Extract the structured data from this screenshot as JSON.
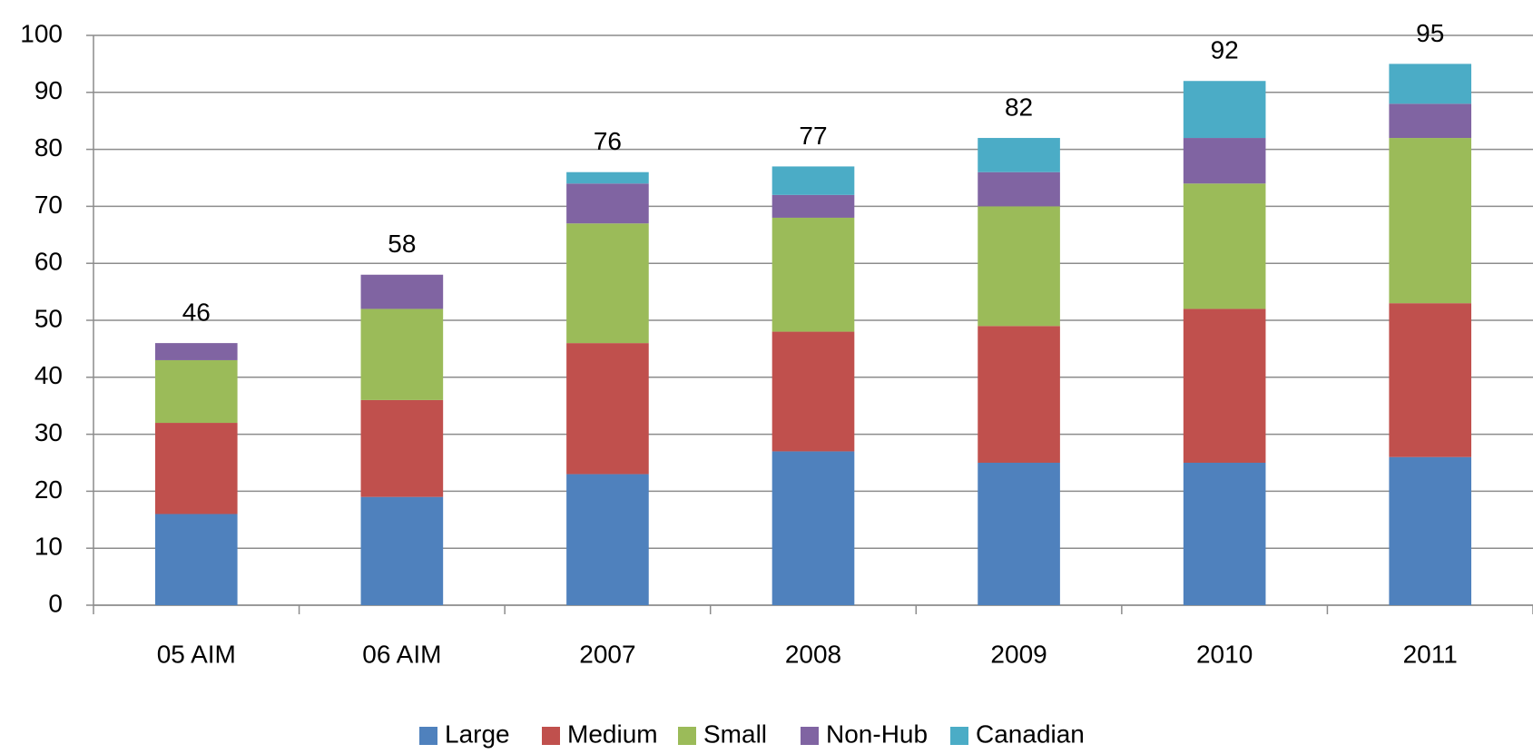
{
  "chart_data": {
    "type": "stacked_bar",
    "categories": [
      "05 AIM",
      "06 AIM",
      "2007",
      "2008",
      "2009",
      "2010",
      "2011"
    ],
    "series": [
      {
        "name": "Large",
        "color": "#4f81bd",
        "values": [
          16,
          19,
          23,
          27,
          25,
          25,
          26
        ]
      },
      {
        "name": "Medium",
        "color": "#c0504d",
        "values": [
          16,
          17,
          23,
          21,
          24,
          27,
          27
        ]
      },
      {
        "name": "Small",
        "color": "#9bbb59",
        "values": [
          11,
          16,
          21,
          20,
          21,
          22,
          29
        ]
      },
      {
        "name": "Non-Hub",
        "color": "#8064a2",
        "values": [
          3,
          6,
          7,
          4,
          6,
          8,
          6
        ]
      },
      {
        "name": "Canadian",
        "color": "#4bacc6",
        "values": [
          0,
          0,
          2,
          5,
          6,
          10,
          7
        ]
      }
    ],
    "totals": [
      46,
      58,
      76,
      77,
      82,
      92,
      95
    ],
    "ylim": [
      0,
      100
    ],
    "yticks": [
      0,
      10,
      20,
      30,
      40,
      50,
      60,
      70,
      80,
      90,
      100
    ],
    "grid": true,
    "legend": "bottom"
  }
}
